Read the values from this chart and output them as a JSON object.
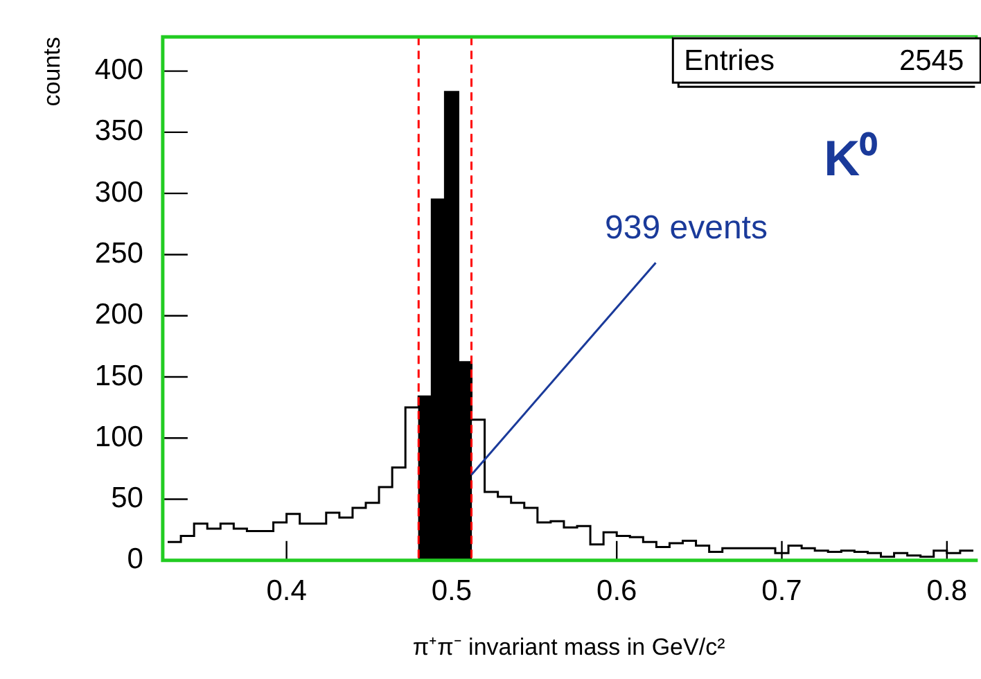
{
  "chart_data": {
    "type": "histogram",
    "xlabel": "π⁺π⁻ invariant mass in GeV/c²",
    "ylabel": "counts",
    "bins": [
      0.48,
      0.488,
      0.496,
      0.504,
      0.512
    ],
    "series": [
      {
        "type": "step",
        "color": "#000000",
        "x": [
          0.328,
          0.336,
          0.344,
          0.352,
          0.36,
          0.368,
          0.376,
          0.384,
          0.392,
          0.4,
          0.408,
          0.416,
          0.424,
          0.432,
          0.44,
          0.448,
          0.456,
          0.464,
          0.472,
          0.48,
          0.488,
          0.496,
          0.504,
          0.512,
          0.52,
          0.528,
          0.536,
          0.544,
          0.552,
          0.56,
          0.568,
          0.576,
          0.584,
          0.592,
          0.6,
          0.608,
          0.616,
          0.624,
          0.632,
          0.64,
          0.648,
          0.656,
          0.664,
          0.672,
          0.68,
          0.688,
          0.696,
          0.704,
          0.712,
          0.72,
          0.728,
          0.736,
          0.744,
          0.752,
          0.76,
          0.768,
          0.776,
          0.784,
          0.792,
          0.8,
          0.808,
          0.816
        ],
        "values": [
          15,
          20,
          30,
          26,
          30,
          26,
          24,
          24,
          31,
          38,
          30,
          30,
          39,
          35,
          43,
          47,
          60,
          76,
          125,
          134,
          295,
          383,
          162,
          115,
          56,
          52,
          47,
          43,
          31,
          32,
          27,
          28,
          13,
          23,
          20,
          19,
          15,
          11,
          14,
          16,
          12,
          7,
          10,
          10,
          10,
          10,
          6,
          12,
          10,
          8,
          7,
          8,
          7,
          6,
          3,
          6,
          4,
          3,
          8,
          6,
          8,
          8
        ]
      },
      {
        "type": "histogram",
        "color": "#000000",
        "values": [
          134,
          295,
          383,
          162
        ]
      }
    ],
    "xlim": [
      0.325,
      0.817
    ],
    "xticks": [
      0.4,
      0.5,
      0.6,
      0.7,
      0.8
    ],
    "ylim": [
      0,
      428
    ],
    "yticks": [
      0,
      50,
      100,
      150,
      200,
      250,
      300,
      350,
      400
    ],
    "grid": false,
    "legend": false,
    "ref_lines": [
      {
        "axis": "x",
        "value": 0.48,
        "color": "#ff0000",
        "line_style": "dashed"
      },
      {
        "axis": "x",
        "value": 0.512,
        "color": "#ff0000",
        "line_style": "dashed"
      }
    ],
    "annotations": [
      "Entries 2545",
      "K⁰",
      {
        "text": "939 events",
        "x": 0.512,
        "y": 70
      }
    ]
  }
}
